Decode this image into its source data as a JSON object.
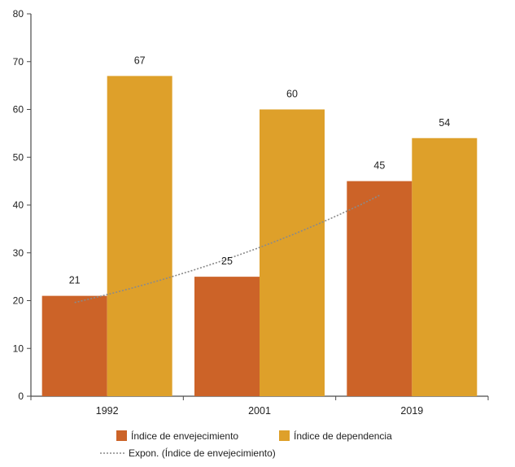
{
  "chart_data": {
    "type": "bar",
    "categories": [
      "1992",
      "2001",
      "2019"
    ],
    "series": [
      {
        "name": "Índice de envejecimiento",
        "values": [
          21,
          25,
          45
        ],
        "color": "#cc6328"
      },
      {
        "name": "Índice de dependencia",
        "values": [
          67,
          60,
          54
        ],
        "color": "#dea02a"
      }
    ],
    "trendline": {
      "name": "Expon. (Índice de envejecimiento)",
      "type": "exponential",
      "of_series": "Índice de envejecimiento",
      "color": "#8a8a8a"
    },
    "title": "",
    "xlabel": "",
    "ylabel": "",
    "ylim": [
      0,
      80
    ],
    "yticks": [
      0,
      10,
      20,
      30,
      40,
      50,
      60,
      70,
      80
    ],
    "grid": false,
    "legend_position": "bottom"
  }
}
